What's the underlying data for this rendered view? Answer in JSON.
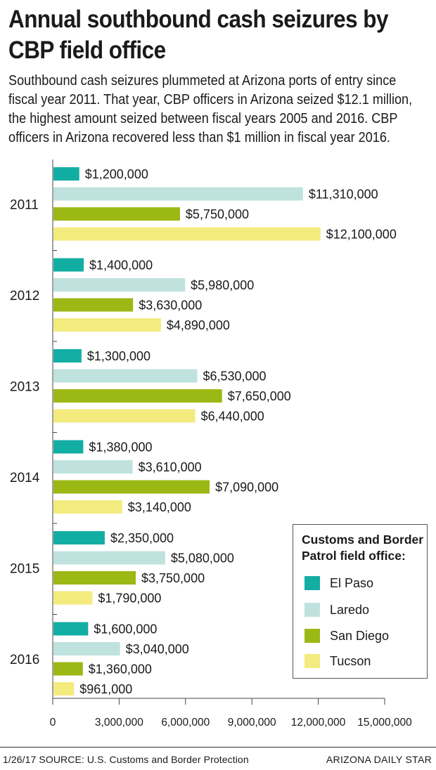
{
  "title": "Annual southbound cash seizures by CBP field office",
  "subtitle": "Southbound cash seizures plummeted at Arizona ports of entry since fiscal year 2011. That year, CBP officers in Arizona seized $12.1 million, the highest amount seized between fiscal years 2005 and 2016. CBP officers in Arizona recovered less than $1 million in fiscal year 2016.",
  "legend": {
    "title": "Customs and Border Patrol field office:",
    "placement": "bottom-right"
  },
  "footer": {
    "date_source": "1/26/17  SOURCE: U.S. Customs and Border Protection",
    "publisher": "ARIZONA DAILY STAR"
  },
  "chart_data": {
    "type": "bar",
    "orientation": "horizontal",
    "categories": [
      "2011",
      "2012",
      "2013",
      "2014",
      "2015",
      "2016"
    ],
    "series": [
      {
        "name": "El Paso",
        "color": "#13aea3",
        "values": [
          1200000,
          1400000,
          1300000,
          1380000,
          2350000,
          1600000
        ],
        "labels": [
          "$1,200,000",
          "$1,400,000",
          "$1,300,000",
          "$1,380,000",
          "$2,350,000",
          "$1,600,000"
        ]
      },
      {
        "name": "Laredo",
        "color": "#bfe2de",
        "values": [
          11310000,
          5980000,
          6530000,
          3610000,
          5080000,
          3040000
        ],
        "labels": [
          "$11,310,000",
          "$5,980,000",
          "$6,530,000",
          "$3,610,000",
          "$5,080,000",
          "$3,040,000"
        ]
      },
      {
        "name": "San Diego",
        "color": "#9cb814",
        "values": [
          5750000,
          3630000,
          7650000,
          7090000,
          3750000,
          1360000
        ],
        "labels": [
          "$5,750,000",
          "$3,630,000",
          "$7,650,000",
          "$7,090,000",
          "$3,750,000",
          "$1,360,000"
        ]
      },
      {
        "name": "Tucson",
        "color": "#f4eb7e",
        "values": [
          12100000,
          4890000,
          6440000,
          3140000,
          1790000,
          961000
        ],
        "labels": [
          "$12,100,000",
          "$4,890,000",
          "$6,440,000",
          "$3,140,000",
          "$1,790,000",
          "$961,000"
        ]
      }
    ],
    "xlim": [
      0,
      15000000
    ],
    "xticks": [
      0,
      3000000,
      6000000,
      9000000,
      12000000,
      15000000
    ],
    "xtick_labels": [
      "0",
      "3,000,000",
      "6,000,000",
      "9,000,000",
      "12,000,000",
      "15,000,000"
    ],
    "grid": false
  }
}
